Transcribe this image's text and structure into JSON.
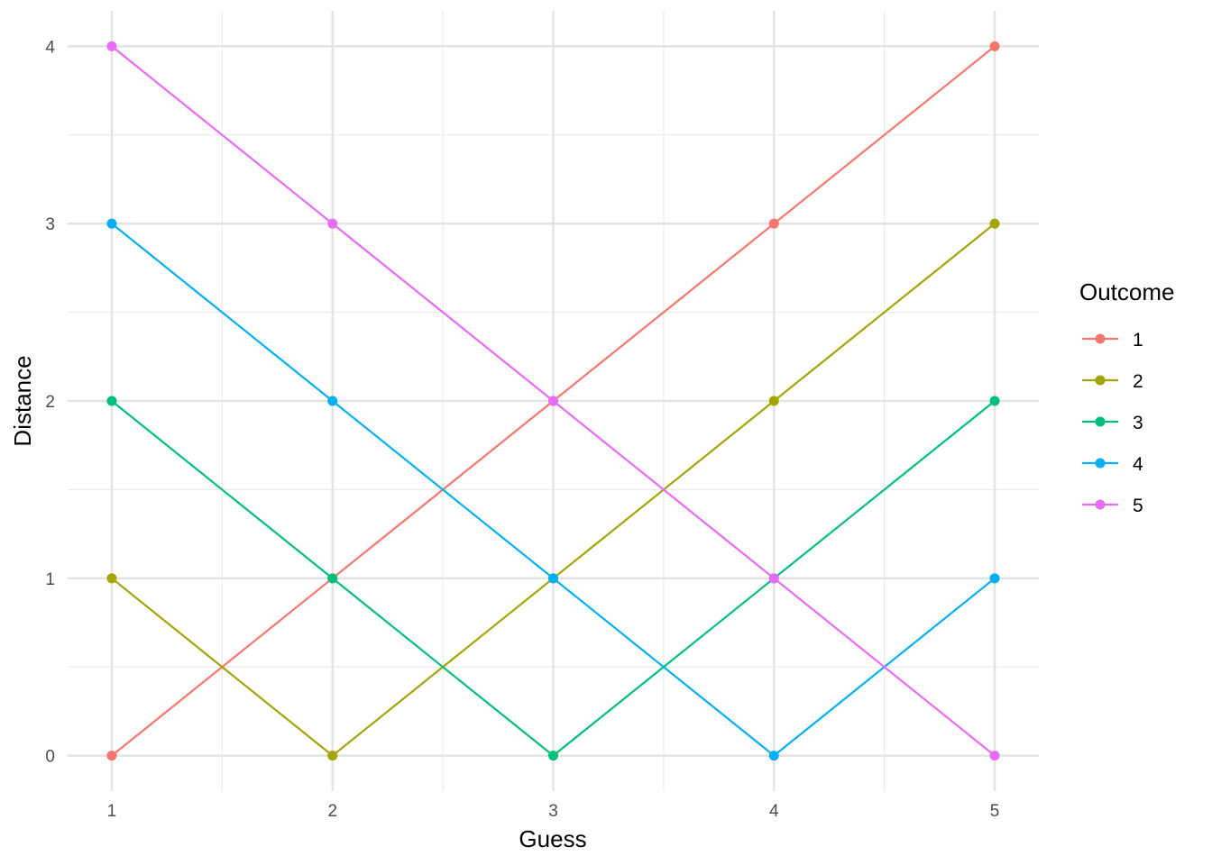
{
  "chart_data": {
    "type": "line",
    "title": "",
    "xlabel": "Guess",
    "ylabel": "Distance",
    "x": [
      1,
      2,
      3,
      4,
      5
    ],
    "x_ticks": [
      "1",
      "2",
      "3",
      "4",
      "5"
    ],
    "y_ticks": [
      "0",
      "1",
      "2",
      "3",
      "4"
    ],
    "xlim": [
      0.8,
      5.2
    ],
    "ylim": [
      -0.2,
      4.2
    ],
    "grid": true,
    "legend": {
      "title": "Outcome",
      "position": "right"
    },
    "series": [
      {
        "name": "1",
        "color": "#F8766D",
        "values": [
          0,
          1,
          2,
          3,
          4
        ]
      },
      {
        "name": "2",
        "color": "#A3A500",
        "values": [
          1,
          0,
          1,
          2,
          3
        ]
      },
      {
        "name": "3",
        "color": "#00BF7D",
        "values": [
          2,
          1,
          0,
          1,
          2
        ]
      },
      {
        "name": "4",
        "color": "#00B0F6",
        "values": [
          3,
          2,
          1,
          0,
          1
        ]
      },
      {
        "name": "5",
        "color": "#E76BF3",
        "values": [
          4,
          3,
          2,
          1,
          0
        ]
      }
    ]
  }
}
